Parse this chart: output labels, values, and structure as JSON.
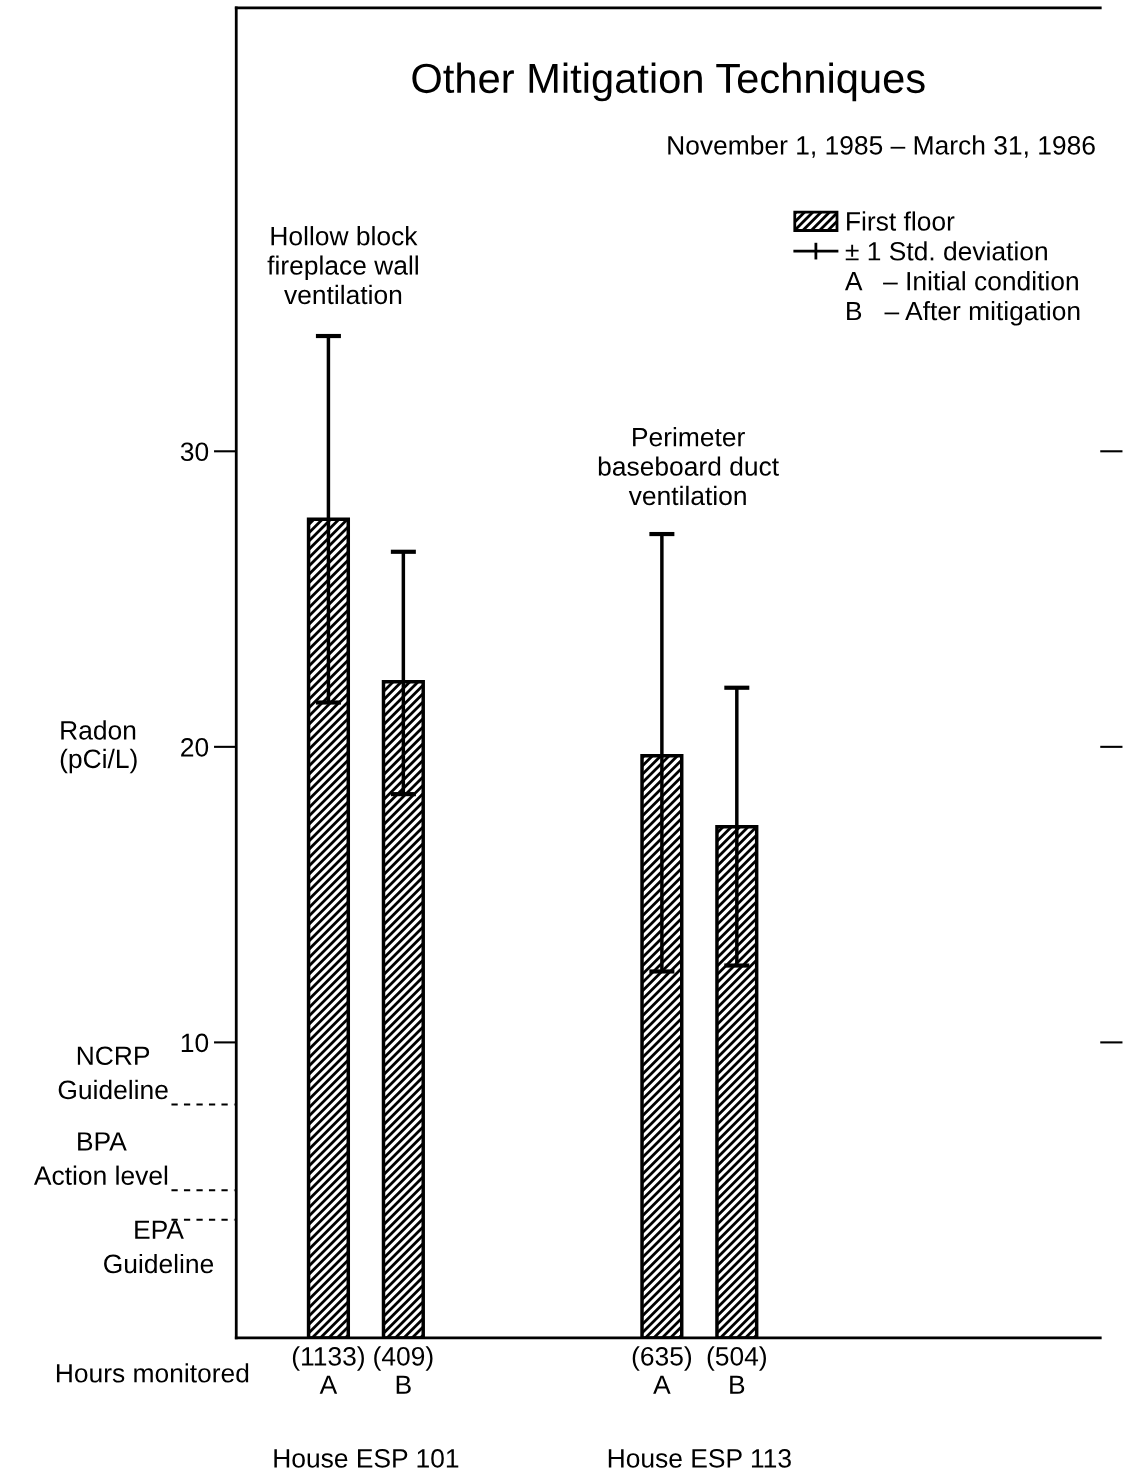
{
  "chart_data": {
    "type": "bar",
    "title": "Other Mitigation Techniques",
    "subtitle": "November 1, 1985 – March 31, 1986",
    "ylabel": "Radon\n(pCi/L)",
    "categories": [
      "(1133)\nA",
      "(409)\nB",
      "(635)\nA",
      "(504)\nB"
    ],
    "series": [
      {
        "name": "First floor",
        "color": "#000000",
        "values": [
          27.7,
          22.2,
          19.7,
          17.3
        ],
        "errors": [
          [
            21.5,
            33.9
          ],
          [
            18.4,
            26.6
          ],
          [
            12.4,
            27.2
          ],
          [
            12.6,
            22.0
          ]
        ]
      }
    ],
    "ylim": [
      0,
      45
    ],
    "yticks": [
      10,
      20,
      30
    ],
    "legend": "top right",
    "grid": false,
    "ref_lines": [
      {
        "axis": "y",
        "value": 7.9,
        "label": "NCRP\nGuideline",
        "line_style": "dashed"
      },
      {
        "axis": "y",
        "value": 5.0,
        "label": "BPA\nAction level",
        "line_style": "dashed"
      },
      {
        "axis": "y",
        "value": 4.0,
        "label": "EPA\nGuideline",
        "line_style": "dashed"
      }
    ],
    "annotations": [
      "± 1 Std. deviation",
      "A   – Initial condition",
      "B   – After mitigation",
      "Hollow block\nfireplace wall\nventilation",
      "Perimeter\nbaseboard duct\nventilation",
      "Hours monitored",
      "House ESP 101",
      "House ESP 113"
    ]
  }
}
